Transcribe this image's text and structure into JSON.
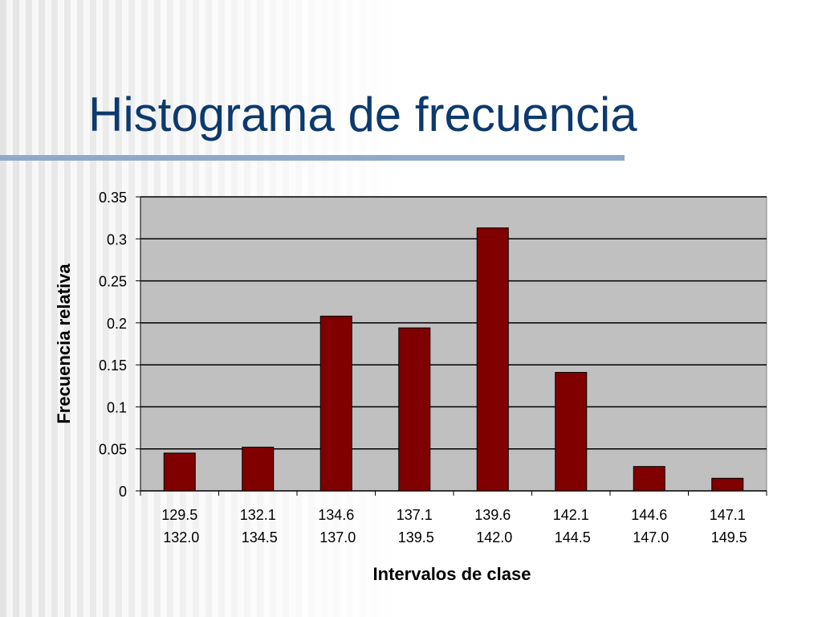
{
  "chart_data": {
    "type": "bar",
    "title": "Histograma de frecuencia",
    "x_label": "Intervalos de clase",
    "y_label": "Frecuencia relativa",
    "categories": [
      [
        "129.5",
        "132.0"
      ],
      [
        "132.1",
        "134.5"
      ],
      [
        "134.6",
        "137.0"
      ],
      [
        "137.1",
        "139.5"
      ],
      [
        "139.6",
        "142.0"
      ],
      [
        "142.1",
        "144.5"
      ],
      [
        "144.6",
        "147.0"
      ],
      [
        "147.1",
        "149.5"
      ]
    ],
    "values": [
      0.045,
      0.052,
      0.208,
      0.194,
      0.313,
      0.141,
      0.029,
      0.015
    ],
    "color": "#800000",
    "ylim": [
      0,
      0.35
    ],
    "yticks": [
      0,
      0.05,
      0.1,
      0.15,
      0.2,
      0.25,
      0.3,
      0.35
    ],
    "grid": true
  }
}
